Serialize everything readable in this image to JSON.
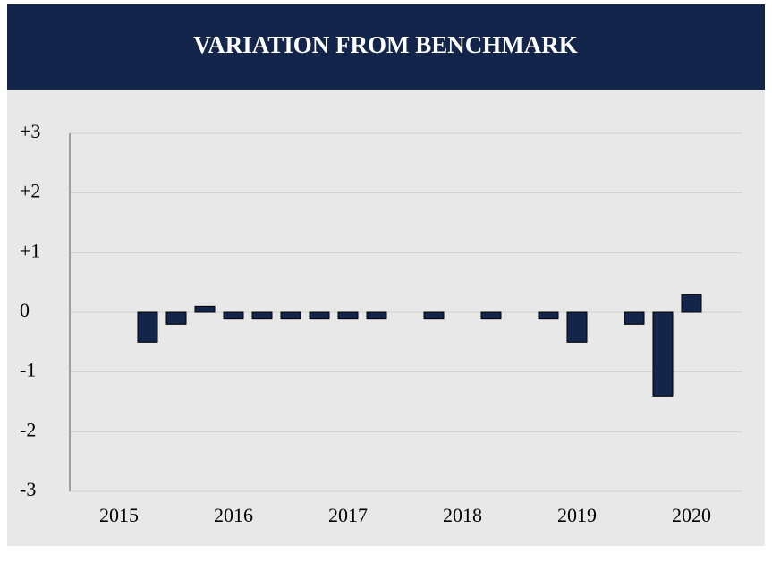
{
  "chart_data": {
    "type": "bar",
    "title": "VARIATION FROM BENCHMARK",
    "categories": [
      "2015",
      null,
      null,
      null,
      "2016",
      null,
      null,
      null,
      "2017",
      null,
      null,
      null,
      "2018",
      null,
      null,
      null,
      "2019",
      null,
      null,
      null,
      "2020"
    ],
    "values": [
      null,
      -0.5,
      -0.2,
      0.1,
      -0.1,
      -0.1,
      -0.1,
      -0.1,
      -0.1,
      -0.1,
      0,
      -0.1,
      0,
      -0.1,
      0,
      -0.1,
      -0.5,
      0,
      -0.2,
      -1.4,
      0.3
    ],
    "color": "#13254a",
    "ylim": [
      -3,
      3
    ],
    "yticks": [
      -3,
      -2,
      -1,
      0,
      {
        "value": 1,
        "label": "+1"
      },
      {
        "value": 2,
        "label": "+2"
      },
      {
        "value": 3,
        "label": "+3"
      }
    ],
    "grid": true
  }
}
